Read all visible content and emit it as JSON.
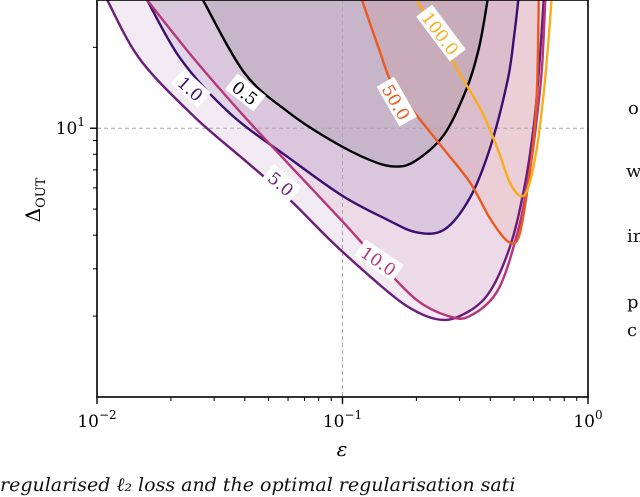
{
  "chart_data": {
    "type": "line",
    "title": "",
    "xlabel": "ε",
    "ylabel": "Δ",
    "ylabel_sub": "OUT",
    "xscale": "log",
    "yscale": "log",
    "xlim": [
      0.01,
      1.0
    ],
    "ylim": [
      1.0,
      30.0
    ],
    "x_ticks": [
      {
        "value": 0.01,
        "base": "10",
        "exp": "−2"
      },
      {
        "value": 0.1,
        "base": "10",
        "exp": "−1"
      },
      {
        "value": 1.0,
        "base": "10",
        "exp": "0"
      }
    ],
    "y_ticks": [
      {
        "value": 10,
        "base": "10",
        "exp": "1"
      }
    ],
    "reference_lines": {
      "x": 0.1,
      "y": 10
    },
    "series": [
      {
        "name": "0.5",
        "color": "#000004",
        "fill": true,
        "points": [
          [
            0.027,
            30
          ],
          [
            0.04,
            16
          ],
          [
            0.06,
            11.5
          ],
          [
            0.09,
            9.0
          ],
          [
            0.13,
            7.6
          ],
          [
            0.165,
            7.2
          ],
          [
            0.2,
            7.6
          ],
          [
            0.26,
            9.5
          ],
          [
            0.32,
            14
          ],
          [
            0.36,
            20
          ],
          [
            0.39,
            30
          ]
        ],
        "label_at": [
          0.04,
          13.5
        ],
        "label_angle": 38
      },
      {
        "name": "1.0",
        "color": "#3b0f70",
        "fill": true,
        "points": [
          [
            0.016,
            30
          ],
          [
            0.022,
            18
          ],
          [
            0.035,
            11.3
          ],
          [
            0.06,
            7.8
          ],
          [
            0.1,
            5.6
          ],
          [
            0.15,
            4.6
          ],
          [
            0.2,
            4.1
          ],
          [
            0.26,
            4.2
          ],
          [
            0.33,
            5.5
          ],
          [
            0.4,
            8.5
          ],
          [
            0.47,
            15
          ],
          [
            0.5,
            22
          ],
          [
            0.52,
            30
          ]
        ],
        "label_at": [
          0.024,
          14
        ],
        "label_angle": 42
      },
      {
        "name": "5.0",
        "color": "#6b1d7a",
        "fill": true,
        "points": [
          [
            0.011,
            30
          ],
          [
            0.015,
            18
          ],
          [
            0.025,
            11
          ],
          [
            0.04,
            7.6
          ],
          [
            0.06,
            5.5
          ],
          [
            0.09,
            3.8
          ],
          [
            0.13,
            2.8
          ],
          [
            0.18,
            2.2
          ],
          [
            0.24,
            1.95
          ],
          [
            0.3,
            2.0
          ],
          [
            0.39,
            2.4
          ],
          [
            0.48,
            3.6
          ],
          [
            0.55,
            6
          ],
          [
            0.6,
            10
          ],
          [
            0.63,
            16
          ],
          [
            0.66,
            30
          ]
        ],
        "label_at": [
          0.056,
          6.2
        ],
        "label_angle": 40
      },
      {
        "name": "10.0",
        "color": "#b63679",
        "fill": true,
        "points": [
          [
            0.016,
            30
          ],
          [
            0.025,
            18
          ],
          [
            0.04,
            11
          ],
          [
            0.06,
            7.4
          ],
          [
            0.1,
            4.5
          ],
          [
            0.14,
            3.2
          ],
          [
            0.2,
            2.3
          ],
          [
            0.27,
            2.0
          ],
          [
            0.33,
            2.0
          ],
          [
            0.43,
            2.5
          ],
          [
            0.52,
            4.2
          ],
          [
            0.58,
            7
          ],
          [
            0.62,
            11
          ],
          [
            0.65,
            17
          ],
          [
            0.67,
            30
          ]
        ],
        "label_at": [
          0.14,
          3.2
        ],
        "label_angle": 34
      },
      {
        "name": "50.0",
        "color": "#e95a1f",
        "fill": true,
        "points": [
          [
            0.12,
            30
          ],
          [
            0.14,
            20
          ],
          [
            0.16,
            14.5
          ],
          [
            0.2,
            11.2
          ],
          [
            0.26,
            8.3
          ],
          [
            0.33,
            6.3
          ],
          [
            0.4,
            4.6
          ],
          [
            0.47,
            3.8
          ],
          [
            0.52,
            3.9
          ],
          [
            0.56,
            5.5
          ],
          [
            0.6,
            9
          ],
          [
            0.62,
            14
          ],
          [
            0.63,
            30
          ]
        ],
        "label_at": [
          0.165,
          12.5
        ],
        "label_angle": 60
      },
      {
        "name": "100.0",
        "color": "#f9ad1c",
        "fill": false,
        "points": [
          [
            0.2,
            30
          ],
          [
            0.24,
            23
          ],
          [
            0.3,
            16
          ],
          [
            0.37,
            11.5
          ],
          [
            0.43,
            8.3
          ],
          [
            0.48,
            6.3
          ],
          [
            0.53,
            5.6
          ],
          [
            0.57,
            6.0
          ],
          [
            0.62,
            8.5
          ],
          [
            0.66,
            13.5
          ],
          [
            0.69,
            21
          ],
          [
            0.71,
            30
          ]
        ],
        "label_at": [
          0.25,
          22.5
        ],
        "label_angle": 53
      }
    ]
  },
  "side_text": [
    "o",
    "w",
    "in",
    "p",
    "c"
  ],
  "caption": "regularised ℓ₂ loss and the optimal regularisation sati"
}
